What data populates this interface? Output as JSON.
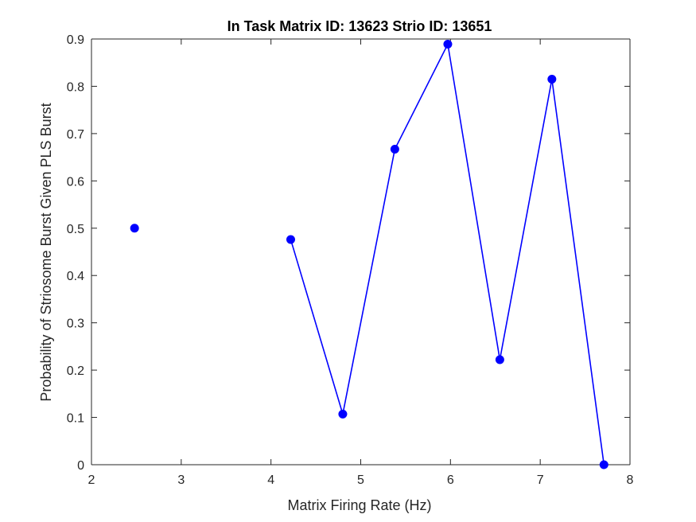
{
  "chart_data": {
    "type": "line",
    "title": "In Task Matrix ID: 13623 Strio ID: 13651",
    "xlabel": "Matrix Firing Rate (Hz)",
    "ylabel": "Probability of Striosome Burst Given PLS Burst",
    "xlim": [
      2,
      8
    ],
    "ylim": [
      0,
      0.9
    ],
    "xticks": [
      2,
      3,
      4,
      5,
      6,
      7,
      8
    ],
    "yticks": [
      0,
      0.1,
      0.2,
      0.3,
      0.4,
      0.5,
      0.6,
      0.7,
      0.8,
      0.9
    ],
    "grid": false,
    "legend": false,
    "series": [
      {
        "segments": [
          [
            [
              2.48,
              0.5
            ]
          ],
          [
            [
              4.22,
              0.476
            ],
            [
              4.8,
              0.107
            ],
            [
              5.38,
              0.667
            ],
            [
              5.97,
              0.889
            ],
            [
              6.55,
              0.222
            ],
            [
              7.13,
              0.815
            ],
            [
              7.71,
              0.0
            ]
          ]
        ],
        "color": "#0000ff",
        "marker": "filled-circle"
      }
    ]
  }
}
